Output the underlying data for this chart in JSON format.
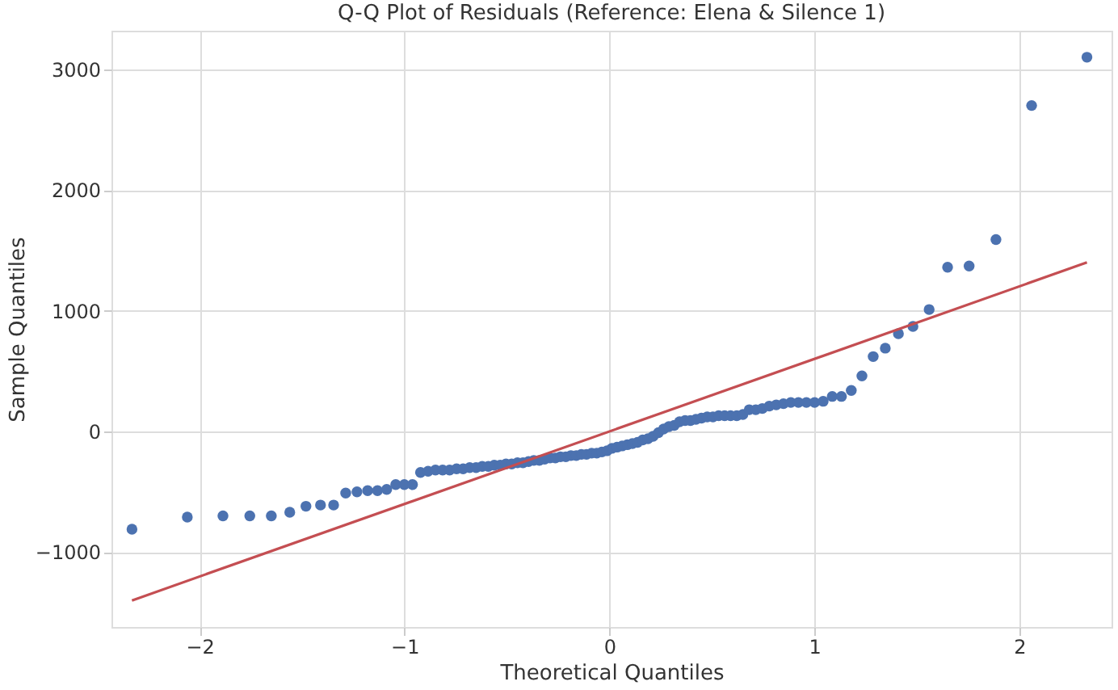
{
  "chart_data": {
    "type": "scatter",
    "title": "Q-Q Plot of Residuals (Reference: Elena & Silence 1)",
    "xlabel": "Theoretical Quantiles",
    "ylabel": "Sample Quantiles",
    "xlim": [
      -2.43,
      2.45
    ],
    "ylim": [
      -1620,
      3320
    ],
    "xticks": [
      {
        "value": -2,
        "label": "−2"
      },
      {
        "value": -1,
        "label": "−1"
      },
      0,
      1,
      2
    ],
    "yticks": [
      {
        "value": -1000,
        "label": "−1000"
      },
      0,
      1000,
      2000,
      3000
    ],
    "grid": true,
    "series": [
      {
        "color": "#4c72b0",
        "marker": "circle",
        "x": [
          -2.33,
          -2.06,
          -1.886,
          -1.755,
          -1.65,
          -1.56,
          -1.481,
          -1.41,
          -1.346,
          -1.287,
          -1.232,
          -1.18,
          -1.132,
          -1.087,
          -1.043,
          -1.001,
          -0.961,
          -0.922,
          -0.885,
          -0.849,
          -0.814,
          -0.78,
          -0.746,
          -0.714,
          -0.682,
          -0.651,
          -0.621,
          -0.591,
          -0.562,
          -0.533,
          -0.505,
          -0.477,
          -0.449,
          -0.422,
          -0.395,
          -0.369,
          -0.342,
          -0.316,
          -0.29,
          -0.264,
          -0.239,
          -0.213,
          -0.188,
          -0.162,
          -0.137,
          -0.112,
          -0.087,
          -0.062,
          -0.037,
          -0.012,
          0.012,
          0.037,
          0.062,
          0.087,
          0.112,
          0.137,
          0.162,
          0.188,
          0.213,
          0.239,
          0.264,
          0.29,
          0.316,
          0.342,
          0.369,
          0.395,
          0.422,
          0.449,
          0.477,
          0.505,
          0.533,
          0.562,
          0.591,
          0.621,
          0.651,
          0.682,
          0.714,
          0.746,
          0.78,
          0.814,
          0.849,
          0.885,
          0.922,
          0.961,
          1.001,
          1.043,
          1.087,
          1.132,
          1.18,
          1.232,
          1.287,
          1.346,
          1.41,
          1.481,
          1.56,
          1.65,
          1.755,
          1.886,
          2.06,
          2.33
        ],
        "values": [
          -810,
          -710,
          -700,
          -700,
          -700,
          -670,
          -620,
          -610,
          -610,
          -510,
          -500,
          -490,
          -490,
          -480,
          -440,
          -440,
          -440,
          -340,
          -330,
          -320,
          -320,
          -320,
          -310,
          -310,
          -300,
          -300,
          -290,
          -290,
          -280,
          -280,
          -270,
          -270,
          -260,
          -260,
          -250,
          -240,
          -240,
          -230,
          -220,
          -220,
          -210,
          -210,
          -200,
          -200,
          -190,
          -190,
          -180,
          -180,
          -170,
          -160,
          -140,
          -130,
          -120,
          -110,
          -100,
          -90,
          -70,
          -60,
          -40,
          -10,
          20,
          40,
          50,
          80,
          90,
          90,
          100,
          110,
          120,
          120,
          130,
          130,
          130,
          130,
          140,
          180,
          180,
          190,
          210,
          220,
          230,
          240,
          240,
          240,
          240,
          250,
          290,
          290,
          340,
          460,
          620,
          690,
          810,
          870,
          1010,
          1360,
          1370,
          1590,
          2700,
          3100
        ]
      },
      {
        "type": "line",
        "color": "#c44e52",
        "line_style": "solid",
        "x": [
          -2.33,
          2.33
        ],
        "values": [
          -1400,
          1400
        ]
      }
    ]
  }
}
